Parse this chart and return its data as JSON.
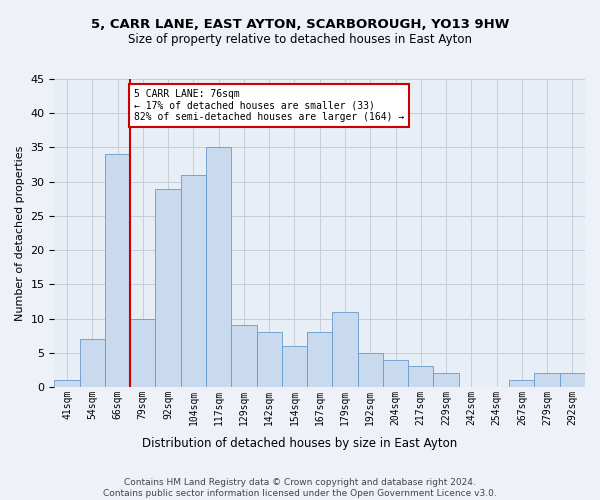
{
  "title": "5, CARR LANE, EAST AYTON, SCARBOROUGH, YO13 9HW",
  "subtitle": "Size of property relative to detached houses in East Ayton",
  "xlabel": "Distribution of detached houses by size in East Ayton",
  "ylabel": "Number of detached properties",
  "bar_values": [
    1,
    7,
    34,
    10,
    29,
    31,
    35,
    9,
    8,
    6,
    8,
    11,
    5,
    4,
    3,
    2,
    0,
    0,
    1,
    2,
    2
  ],
  "bin_labels": [
    "41sqm",
    "54sqm",
    "66sqm",
    "79sqm",
    "92sqm",
    "104sqm",
    "117sqm",
    "129sqm",
    "142sqm",
    "154sqm",
    "167sqm",
    "179sqm",
    "192sqm",
    "204sqm",
    "217sqm",
    "229sqm",
    "242sqm",
    "254sqm",
    "267sqm",
    "279sqm",
    "292sqm"
  ],
  "bar_color": "#c9d9ee",
  "bar_edge_color": "#6699cc",
  "vline_x_index": 2,
  "vline_color": "#cc0000",
  "annotation_text": "5 CARR LANE: 76sqm\n← 17% of detached houses are smaller (33)\n82% of semi-detached houses are larger (164) →",
  "annotation_box_color": "#ffffff",
  "annotation_box_edge": "#cc0000",
  "ylim": [
    0,
    45
  ],
  "yticks": [
    0,
    5,
    10,
    15,
    20,
    25,
    30,
    35,
    40,
    45
  ],
  "footer_line1": "Contains HM Land Registry data © Crown copyright and database right 2024.",
  "footer_line2": "Contains public sector information licensed under the Open Government Licence v3.0.",
  "bg_color": "#eef2f8",
  "plot_bg_color": "#e8eef6",
  "grid_color": "#c8cdd8"
}
